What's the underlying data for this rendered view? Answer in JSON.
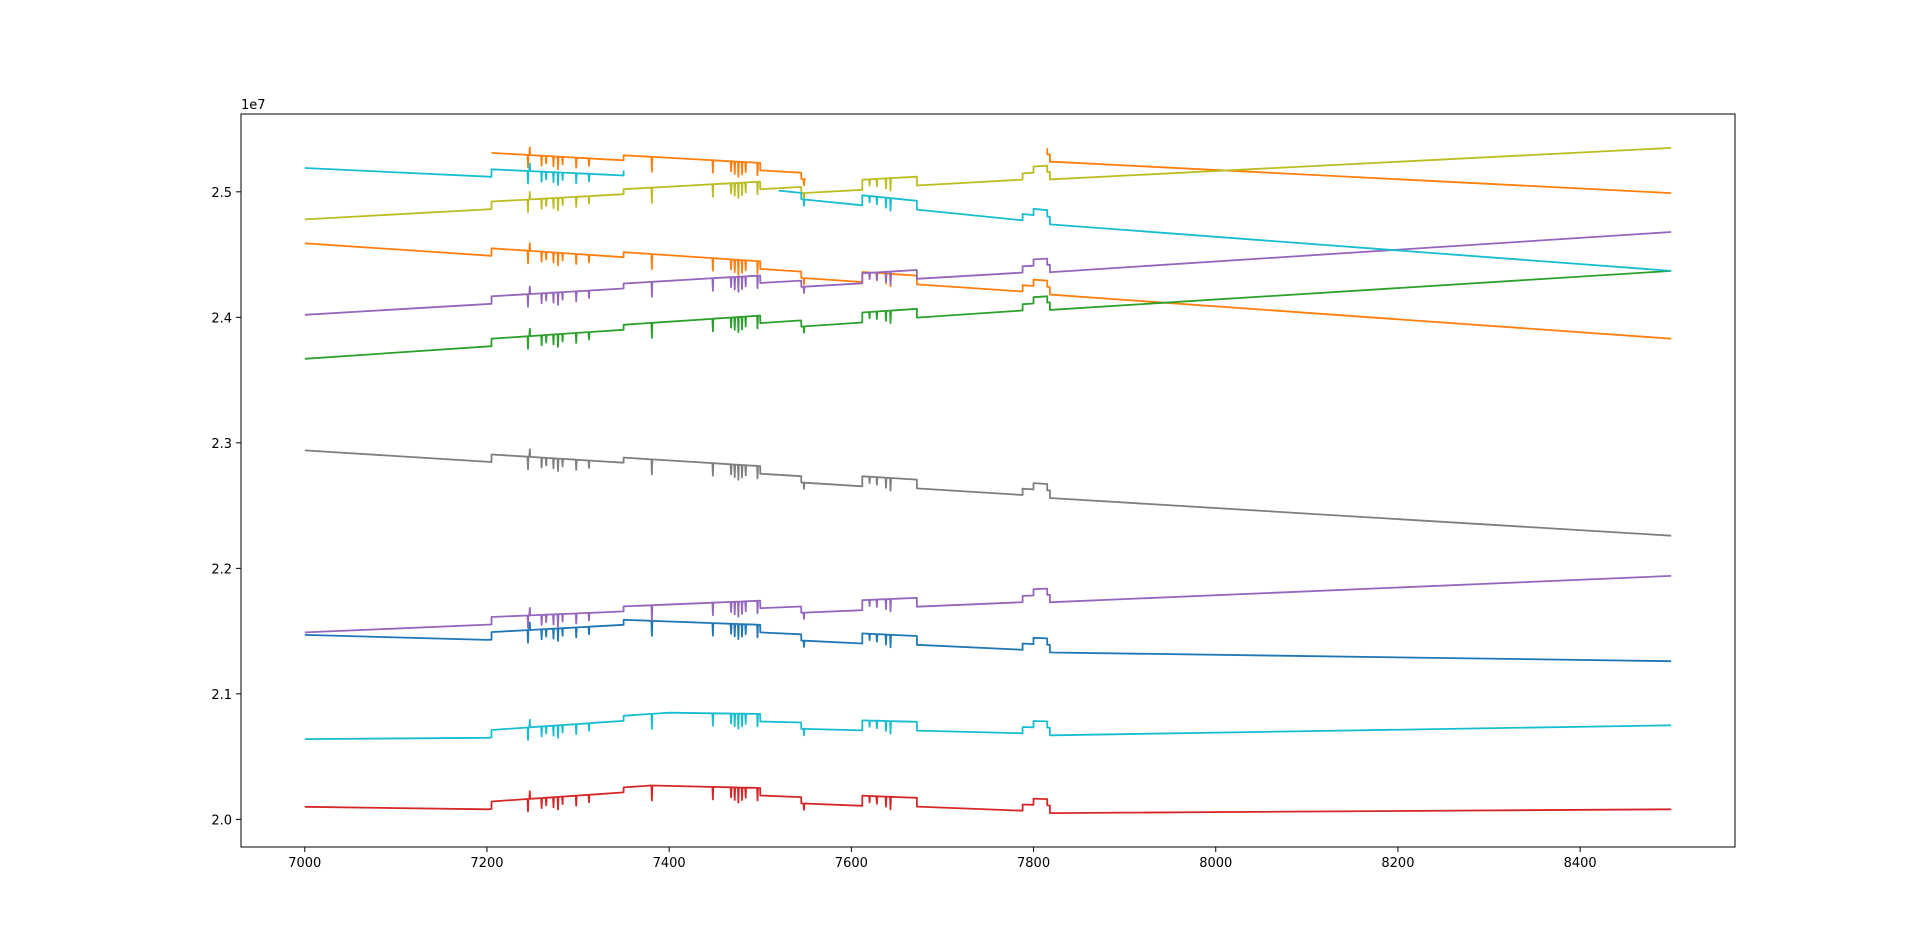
{
  "chart_data": {
    "type": "line",
    "title": "",
    "xlabel": "",
    "ylabel": "",
    "xlim": [
      6930,
      8570
    ],
    "ylim": [
      19.78,
      25.62
    ],
    "y_offset_label": "1e7",
    "grid": false,
    "legend": "none",
    "x_ticks": [
      7000,
      7200,
      7400,
      7600,
      7800,
      8000,
      8200,
      8400
    ],
    "x_tick_labels": [
      "7000",
      "7200",
      "7400",
      "7600",
      "7800",
      "8000",
      "8200",
      "8400"
    ],
    "y_ticks": [
      20.0,
      21.0,
      22.0,
      23.0,
      24.0,
      25.0
    ],
    "y_tick_labels": [
      "2.0",
      "2.1",
      "2.2",
      "2.3",
      "2.4",
      "2.5"
    ],
    "pattern": {
      "steps": [
        {
          "x": 7205,
          "d": 0.06
        },
        {
          "x": 7350,
          "d": 0.04
        },
        {
          "x": 7500,
          "d": -0.06
        },
        {
          "x": 7545,
          "d": -0.05
        },
        {
          "x": 7612,
          "d": 0.08
        },
        {
          "x": 7672,
          "d": -0.07
        },
        {
          "x": 7788,
          "d": 0.05
        },
        {
          "x": 7818,
          "d": -0.06
        }
      ],
      "bumps": [
        {
          "x1": 7800,
          "x2": 7815,
          "d": 0.05
        }
      ],
      "spikes": [
        {
          "x": 7245,
          "d": -0.1
        },
        {
          "x": 7247,
          "d": 0.06
        },
        {
          "x": 7260,
          "d": -0.08
        },
        {
          "x": 7265,
          "d": -0.06
        },
        {
          "x": 7273,
          "d": -0.08
        },
        {
          "x": 7278,
          "d": -0.1
        },
        {
          "x": 7283,
          "d": -0.06
        },
        {
          "x": 7298,
          "d": -0.08
        },
        {
          "x": 7312,
          "d": -0.06
        },
        {
          "x": 7381,
          "d": -0.12
        },
        {
          "x": 7448,
          "d": -0.1
        },
        {
          "x": 7468,
          "d": -0.08
        },
        {
          "x": 7472,
          "d": -0.1
        },
        {
          "x": 7476,
          "d": -0.12
        },
        {
          "x": 7480,
          "d": -0.1
        },
        {
          "x": 7484,
          "d": -0.08
        },
        {
          "x": 7497,
          "d": -0.1
        },
        {
          "x": 7548,
          "d": -0.05
        },
        {
          "x": 7620,
          "d": -0.05
        },
        {
          "x": 7628,
          "d": -0.06
        },
        {
          "x": 7638,
          "d": -0.08
        },
        {
          "x": 7643,
          "d": -0.1
        }
      ],
      "breakpoints": [
        7205,
        7245,
        7320,
        7350,
        7381,
        7445,
        7500,
        7545,
        7612,
        7650,
        7672,
        7788,
        7818
      ]
    },
    "series": [
      {
        "color": "#1f77b4",
        "x_start": 7000,
        "x_end": 8500,
        "y_start": 21.47,
        "y_end": 21.27,
        "knots": [
          [
            7000,
            21.47
          ],
          [
            7200,
            21.43
          ],
          [
            7350,
            21.49
          ],
          [
            7500,
            21.45
          ],
          [
            7820,
            21.34
          ],
          [
            8500,
            21.27
          ]
        ]
      },
      {
        "color": "#ff7f0e",
        "x_start": 7000,
        "x_end": 8500,
        "y_start": 24.59,
        "y_end": 23.84,
        "knots": [
          [
            7000,
            24.59
          ],
          [
            7820,
            24.19
          ],
          [
            8500,
            23.84
          ]
        ]
      },
      {
        "color": "#ff7f0e",
        "x_start": 7205,
        "x_end": 8500,
        "y_start": 25.25,
        "y_end": 25.0,
        "knots": [
          [
            7205,
            25.25
          ],
          [
            7550,
            25.11
          ],
          [
            7820,
            25.25
          ],
          [
            8500,
            25.0
          ]
        ],
        "gap": [
          7555,
          7815
        ]
      },
      {
        "color": "#2ca02c",
        "x_start": 7000,
        "x_end": 8500,
        "y_start": 23.67,
        "y_end": 24.38,
        "knots": [
          [
            7000,
            23.67
          ],
          [
            7820,
            24.07
          ],
          [
            8500,
            24.38
          ]
        ]
      },
      {
        "color": "#d62728",
        "x_start": 7000,
        "x_end": 8500,
        "y_start": 20.1,
        "y_end": 20.09,
        "knots": [
          [
            7000,
            20.1
          ],
          [
            7200,
            20.08
          ],
          [
            7380,
            20.17
          ],
          [
            7500,
            20.15
          ],
          [
            7820,
            20.06
          ],
          [
            8500,
            20.09
          ]
        ]
      },
      {
        "color": "#9467bd",
        "x_start": 7000,
        "x_end": 8500,
        "y_start": 24.02,
        "y_end": 24.69,
        "knots": [
          [
            7000,
            24.02
          ],
          [
            7820,
            24.37
          ],
          [
            8500,
            24.69
          ]
        ]
      },
      {
        "color": "#9467bd",
        "x_start": 7000,
        "x_end": 8500,
        "y_start": 21.49,
        "y_end": 21.95,
        "knots": [
          [
            7000,
            21.49
          ],
          [
            7820,
            21.74
          ],
          [
            8500,
            21.95
          ]
        ]
      },
      {
        "color": "#7f7f7f",
        "x_start": 7000,
        "x_end": 8500,
        "y_start": 22.94,
        "y_end": 22.27,
        "knots": [
          [
            7000,
            22.94
          ],
          [
            7820,
            22.57
          ],
          [
            8500,
            22.27
          ]
        ]
      },
      {
        "color": "#bcbd22",
        "x_start": 7000,
        "x_end": 8500,
        "y_start": 24.78,
        "y_end": 25.36,
        "knots": [
          [
            7000,
            24.78
          ],
          [
            7820,
            25.11
          ],
          [
            8500,
            25.36
          ]
        ]
      },
      {
        "color": "#17becf",
        "x_start": 7000,
        "x_end": 8500,
        "y_start": 25.19,
        "y_end": 24.38,
        "knots": [
          [
            7000,
            25.19
          ],
          [
            7350,
            25.07
          ],
          [
            7520,
            24.97
          ],
          [
            7820,
            24.75
          ],
          [
            8500,
            24.38
          ]
        ],
        "gap": [
          7353,
          7518
        ]
      },
      {
        "color": "#17becf",
        "x_start": 7000,
        "x_end": 8500,
        "y_start": 20.64,
        "y_end": 20.76,
        "knots": [
          [
            7000,
            20.64
          ],
          [
            7200,
            20.65
          ],
          [
            7400,
            20.75
          ],
          [
            7500,
            20.74
          ],
          [
            7820,
            20.68
          ],
          [
            8500,
            20.76
          ]
        ]
      }
    ]
  }
}
